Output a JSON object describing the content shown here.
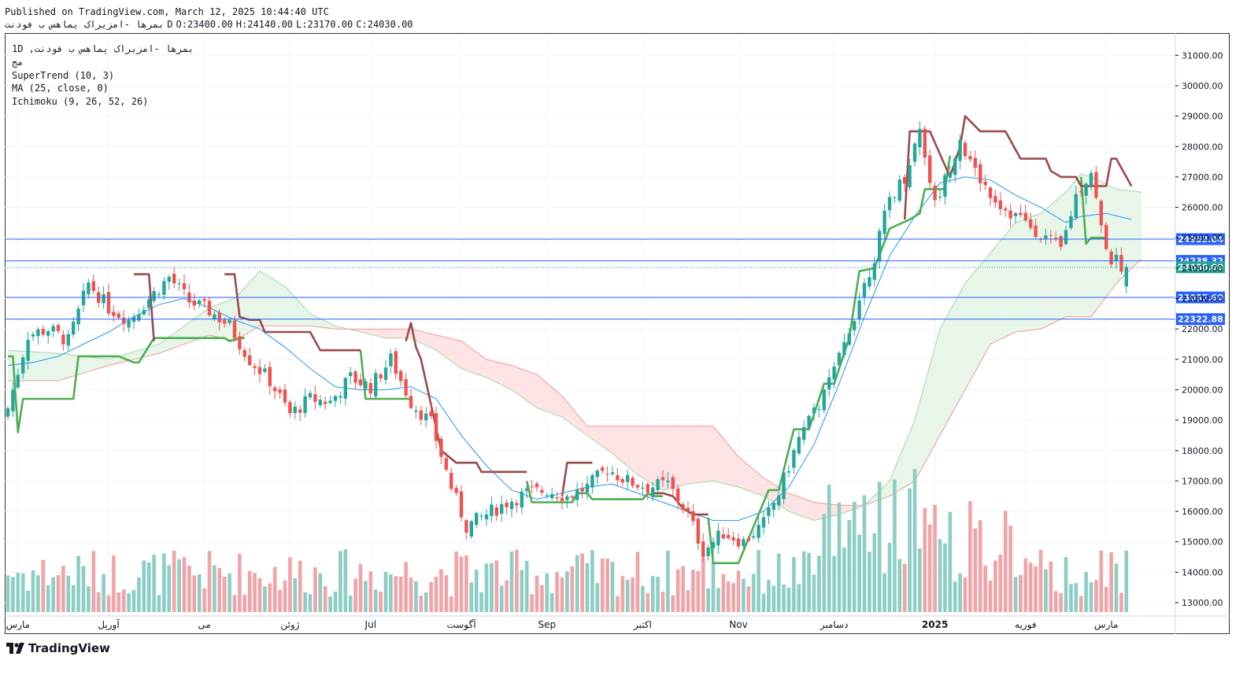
{
  "header": {
    "published": "Published on TradingView.com, March 12, 2025 10:44:40 UTC",
    "symbol_line": "بمرها -امزیراک یماهس ب فودنت",
    "interval": "D",
    "open": "O:23400.00",
    "high": "H:24140.00",
    "low": "L:23170.00",
    "close": "C:24030.00"
  },
  "legend": {
    "title": "1D ,بمرها -امزیراک یماهس ب فودنت",
    "exchange": "مج",
    "supertrend": "SuperTrend (10, 3)",
    "ma": "MA (25, close, 0)",
    "ichimoku": "Ichimoku (9, 26, 52, 26)"
  },
  "brand": {
    "name": "TradingView"
  },
  "colors": {
    "up": "#26a69a",
    "down": "#ef5350",
    "up_volume": "#8ccdc4",
    "down_volume": "#f1a3a6",
    "supertrend_up": "#4caf50",
    "supertrend_down": "#9c4a4a",
    "ma": "#2196f3",
    "cloud_green": "#e8f5e9",
    "cloud_red": "#fde3e3",
    "level": "#2962ff",
    "label_bg": "#2962ff",
    "current_bg": "#26a69a"
  },
  "chart_data": {
    "type": "candlestick",
    "ylim": [
      12650,
      31450
    ],
    "y_ticks": [
      13000,
      14000,
      15000,
      16000,
      17000,
      18000,
      19000,
      20000,
      21000,
      22000,
      23000,
      24000,
      25000,
      26000,
      27000,
      28000,
      29000,
      30000,
      31000
    ],
    "y_tick_labels": [
      "13000.00",
      "14000.00",
      "15000.00",
      "16000.00",
      "17000.00",
      "18000.00",
      "19000.00",
      "20000.00",
      "21000.00",
      "22000.00",
      "23000.00",
      "24000.00",
      "25000.00",
      "26000.00",
      "27000.00",
      "28000.00",
      "29000.00",
      "30000.00",
      "31000.00"
    ],
    "x_labels": [
      "مارس",
      "آوریل",
      "می",
      "ژوئن",
      "Jul",
      "آگوست",
      "Sep",
      "اکتبر",
      "Nov",
      "دسامبر",
      "2025",
      "فوریه",
      "مارس"
    ],
    "x_label_bars": [
      2,
      20,
      39,
      56,
      72,
      90,
      107,
      126,
      145,
      164,
      184,
      202,
      218
    ],
    "price_levels": [
      {
        "value": 24953.04,
        "label": "24953.04"
      },
      {
        "value": 24238.32,
        "label": "24238.32"
      },
      {
        "value": 23037.6,
        "label": "23037.60"
      },
      {
        "value": 22322.88,
        "label": "22322.88"
      }
    ],
    "current_price": {
      "value": 24030.0,
      "label": "24030.00"
    },
    "anchors": [
      [
        0,
        19400
      ],
      [
        4,
        21800
      ],
      [
        8,
        22000
      ],
      [
        12,
        21600
      ],
      [
        16,
        23500
      ],
      [
        20,
        22700
      ],
      [
        24,
        22300
      ],
      [
        28,
        23000
      ],
      [
        32,
        23700
      ],
      [
        36,
        22900
      ],
      [
        40,
        22600
      ],
      [
        44,
        22100
      ],
      [
        48,
        21000
      ],
      [
        52,
        20300
      ],
      [
        56,
        19200
      ],
      [
        60,
        19700
      ],
      [
        64,
        19600
      ],
      [
        68,
        20400
      ],
      [
        72,
        20100
      ],
      [
        76,
        21000
      ],
      [
        80,
        19600
      ],
      [
        84,
        18900
      ],
      [
        88,
        16800
      ],
      [
        91,
        15500
      ],
      [
        95,
        15900
      ],
      [
        99,
        16300
      ],
      [
        103,
        16600
      ],
      [
        107,
        16700
      ],
      [
        111,
        16500
      ],
      [
        115,
        16800
      ],
      [
        119,
        17400
      ],
      [
        123,
        17000
      ],
      [
        127,
        16800
      ],
      [
        131,
        16900
      ],
      [
        135,
        15900
      ],
      [
        138,
        14700
      ],
      [
        142,
        15300
      ],
      [
        146,
        15000
      ],
      [
        150,
        15600
      ],
      [
        153,
        16600
      ],
      [
        157,
        18400
      ],
      [
        161,
        19500
      ],
      [
        165,
        21000
      ],
      [
        169,
        23000
      ],
      [
        172,
        24400
      ],
      [
        175,
        26300
      ],
      [
        178,
        27000
      ],
      [
        181,
        28600
      ],
      [
        184,
        26100
      ],
      [
        186,
        26900
      ],
      [
        189,
        28300
      ],
      [
        191,
        27400
      ],
      [
        194,
        26700
      ],
      [
        197,
        26100
      ],
      [
        200,
        25700
      ],
      [
        203,
        25400
      ],
      [
        206,
        25000
      ],
      [
        209,
        24600
      ],
      [
        212,
        26400
      ],
      [
        215,
        27200
      ],
      [
        217,
        25300
      ],
      [
        219,
        24300
      ],
      [
        222,
        24030
      ]
    ],
    "supertrend": {
      "up_segments": [
        [
          [
            0,
            21100
          ],
          [
            1,
            21100
          ],
          [
            2,
            18600
          ],
          [
            3,
            19700
          ],
          [
            13,
            19700
          ],
          [
            14,
            21100
          ],
          [
            22,
            21100
          ],
          [
            25,
            20900
          ],
          [
            26,
            20900
          ],
          [
            29,
            21700
          ],
          [
            43,
            21700
          ],
          [
            44,
            21600
          ],
          [
            46,
            21700
          ],
          [
            47,
            21700
          ]
        ],
        [
          [
            70,
            21300
          ],
          [
            71,
            19700
          ],
          [
            80,
            19700
          ]
        ],
        [
          [
            103,
            17000
          ],
          [
            104,
            16300
          ],
          [
            112,
            16300
          ],
          [
            113,
            16600
          ],
          [
            115,
            16600
          ],
          [
            116,
            16400
          ],
          [
            126,
            16400
          ],
          [
            127,
            16600
          ],
          [
            128,
            16500
          ],
          [
            130,
            16500
          ]
        ],
        [
          [
            139,
            15800
          ],
          [
            140,
            14300
          ],
          [
            145,
            14300
          ],
          [
            148,
            15500
          ],
          [
            151,
            16700
          ],
          [
            153,
            16700
          ],
          [
            156,
            18700
          ],
          [
            159,
            18700
          ],
          [
            162,
            20200
          ],
          [
            164,
            20200
          ],
          [
            167,
            21700
          ],
          [
            169,
            23900
          ],
          [
            172,
            24000
          ],
          [
            175,
            25300
          ],
          [
            179,
            25600
          ],
          [
            181,
            25800
          ],
          [
            182,
            26600
          ],
          [
            186,
            26600
          ],
          [
            187,
            27700
          ]
        ],
        [
          [
            213,
            27000
          ],
          [
            214,
            24800
          ],
          [
            215,
            25000
          ],
          [
            218,
            25000
          ]
        ]
      ],
      "down_segments": [
        [
          [
            25,
            23800
          ],
          [
            28,
            23800
          ],
          [
            29,
            21600
          ]
        ],
        [
          [
            43,
            23800
          ],
          [
            45,
            23800
          ],
          [
            46,
            22400
          ],
          [
            48,
            22300
          ],
          [
            50,
            22300
          ],
          [
            51,
            21900
          ],
          [
            60,
            21900
          ],
          [
            62,
            21300
          ],
          [
            70,
            21300
          ]
        ],
        [
          [
            79,
            21600
          ],
          [
            80,
            22200
          ],
          [
            81,
            21400
          ],
          [
            82,
            21000
          ],
          [
            86,
            18000
          ],
          [
            89,
            17600
          ],
          [
            93,
            17600
          ],
          [
            94,
            17300
          ],
          [
            103,
            17300
          ]
        ],
        [
          [
            110,
            16500
          ],
          [
            111,
            17600
          ],
          [
            116,
            17600
          ]
        ],
        [
          [
            128,
            16600
          ],
          [
            130,
            16600
          ],
          [
            132,
            16500
          ],
          [
            134,
            16100
          ],
          [
            136,
            15900
          ],
          [
            139,
            15900
          ]
        ],
        [
          [
            178,
            25600
          ],
          [
            179,
            28500
          ],
          [
            183,
            28500
          ],
          [
            187,
            27000
          ],
          [
            189,
            28000
          ],
          [
            190,
            29000
          ],
          [
            193,
            28500
          ],
          [
            198,
            28500
          ],
          [
            201,
            27600
          ],
          [
            206,
            27600
          ],
          [
            207,
            27200
          ],
          [
            209,
            27000
          ],
          [
            212,
            27000
          ],
          [
            213,
            26700
          ],
          [
            218,
            26700
          ],
          [
            219,
            27600
          ],
          [
            220,
            27600
          ],
          [
            223,
            26700
          ]
        ]
      ]
    },
    "ma_line": [
      [
        0,
        20800
      ],
      [
        5,
        20900
      ],
      [
        10,
        21100
      ],
      [
        15,
        21500
      ],
      [
        20,
        21900
      ],
      [
        25,
        22400
      ],
      [
        30,
        22800
      ],
      [
        35,
        23000
      ],
      [
        40,
        22700
      ],
      [
        45,
        22300
      ],
      [
        50,
        22000
      ],
      [
        55,
        21400
      ],
      [
        60,
        20700
      ],
      [
        65,
        20100
      ],
      [
        70,
        20000
      ],
      [
        75,
        20000
      ],
      [
        80,
        20100
      ],
      [
        85,
        19700
      ],
      [
        90,
        18500
      ],
      [
        95,
        17500
      ],
      [
        100,
        16700
      ],
      [
        105,
        16400
      ],
      [
        110,
        16600
      ],
      [
        115,
        16800
      ],
      [
        120,
        16900
      ],
      [
        125,
        16600
      ],
      [
        130,
        16300
      ],
      [
        135,
        16000
      ],
      [
        140,
        15700
      ],
      [
        145,
        15700
      ],
      [
        150,
        16000
      ],
      [
        155,
        16800
      ],
      [
        160,
        18200
      ],
      [
        165,
        20200
      ],
      [
        170,
        22400
      ],
      [
        175,
        24400
      ],
      [
        180,
        25700
      ],
      [
        185,
        26800
      ],
      [
        190,
        27000
      ],
      [
        195,
        26900
      ],
      [
        200,
        26400
      ],
      [
        205,
        26000
      ],
      [
        210,
        25500
      ],
      [
        213,
        25700
      ],
      [
        218,
        25800
      ],
      [
        223,
        25600
      ]
    ],
    "cloud": {
      "span_a": [
        [
          0,
          21300
        ],
        [
          10,
          21200
        ],
        [
          20,
          21000
        ],
        [
          30,
          21500
        ],
        [
          40,
          22700
        ],
        [
          45,
          23000
        ],
        [
          50,
          23900
        ],
        [
          55,
          23400
        ],
        [
          60,
          22500
        ],
        [
          65,
          22100
        ],
        [
          70,
          21900
        ],
        [
          75,
          21700
        ],
        [
          80,
          21700
        ],
        [
          85,
          21300
        ],
        [
          90,
          20700
        ],
        [
          95,
          20400
        ],
        [
          100,
          20000
        ],
        [
          105,
          19400
        ],
        [
          110,
          19100
        ],
        [
          115,
          18500
        ],
        [
          120,
          17900
        ],
        [
          125,
          17200
        ],
        [
          130,
          16700
        ],
        [
          135,
          16900
        ],
        [
          140,
          17000
        ],
        [
          145,
          16800
        ],
        [
          150,
          16500
        ],
        [
          155,
          16000
        ],
        [
          160,
          15700
        ],
        [
          165,
          15900
        ],
        [
          170,
          16200
        ],
        [
          175,
          17000
        ],
        [
          180,
          19000
        ],
        [
          185,
          22000
        ],
        [
          190,
          23500
        ],
        [
          195,
          24500
        ],
        [
          200,
          25500
        ],
        [
          205,
          25800
        ],
        [
          210,
          26500
        ],
        [
          213,
          27100
        ],
        [
          215,
          27000
        ],
        [
          220,
          26600
        ],
        [
          225,
          26500
        ]
      ],
      "span_b": [
        [
          0,
          20300
        ],
        [
          10,
          20300
        ],
        [
          20,
          20800
        ],
        [
          30,
          21200
        ],
        [
          40,
          21800
        ],
        [
          45,
          21600
        ],
        [
          50,
          22100
        ],
        [
          55,
          22100
        ],
        [
          60,
          22100
        ],
        [
          65,
          22000
        ],
        [
          70,
          22000
        ],
        [
          75,
          22000
        ],
        [
          80,
          22000
        ],
        [
          85,
          21800
        ],
        [
          90,
          21600
        ],
        [
          95,
          21000
        ],
        [
          100,
          20800
        ],
        [
          105,
          20500
        ],
        [
          110,
          19800
        ],
        [
          115,
          18800
        ],
        [
          120,
          18800
        ],
        [
          125,
          18800
        ],
        [
          130,
          18800
        ],
        [
          135,
          18800
        ],
        [
          140,
          18800
        ],
        [
          145,
          17800
        ],
        [
          150,
          17100
        ],
        [
          155,
          16600
        ],
        [
          160,
          16300
        ],
        [
          165,
          16200
        ],
        [
          170,
          16200
        ],
        [
          175,
          16500
        ],
        [
          180,
          17000
        ],
        [
          185,
          18500
        ],
        [
          190,
          20000
        ],
        [
          195,
          21500
        ],
        [
          200,
          21900
        ],
        [
          205,
          22000
        ],
        [
          210,
          22400
        ],
        [
          215,
          22400
        ],
        [
          220,
          23500
        ],
        [
          225,
          24300
        ]
      ]
    }
  }
}
